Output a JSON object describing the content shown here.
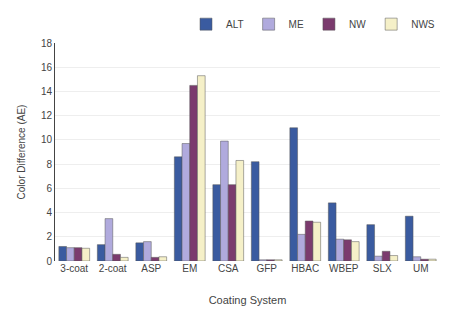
{
  "chart_data": {
    "type": "bar",
    "xlabel": "Coating System",
    "ylabel": "Color Difference (AE)",
    "categories": [
      "3-coat",
      "2-coat",
      "ASP",
      "EM",
      "CSA",
      "GFP",
      "HBAC",
      "WBEP",
      "SLX",
      "UM"
    ],
    "series": [
      {
        "name": "ALT",
        "color": "#3A5BA0",
        "values": [
          1.2,
          1.35,
          1.5,
          8.6,
          6.3,
          8.2,
          11.0,
          4.8,
          3.0,
          3.7
        ]
      },
      {
        "name": "ME",
        "color": "#B0AADD",
        "values": [
          1.1,
          3.5,
          1.6,
          9.7,
          9.9,
          0.1,
          2.2,
          1.8,
          0.4,
          0.35
        ]
      },
      {
        "name": "NW",
        "color": "#7B3B6E",
        "values": [
          1.1,
          0.55,
          0.3,
          14.5,
          6.3,
          0.1,
          3.3,
          1.75,
          0.8,
          0.15
        ]
      },
      {
        "name": "NWS",
        "color": "#F5F0C8",
        "values": [
          1.05,
          0.3,
          0.35,
          15.3,
          8.3,
          0.1,
          3.2,
          1.6,
          0.45,
          0.15
        ]
      }
    ],
    "ylim": [
      0,
      18
    ],
    "yticks": [
      0,
      2,
      4,
      6,
      8,
      10,
      12,
      14,
      16,
      18
    ],
    "grid": true,
    "legend": "upper right"
  }
}
